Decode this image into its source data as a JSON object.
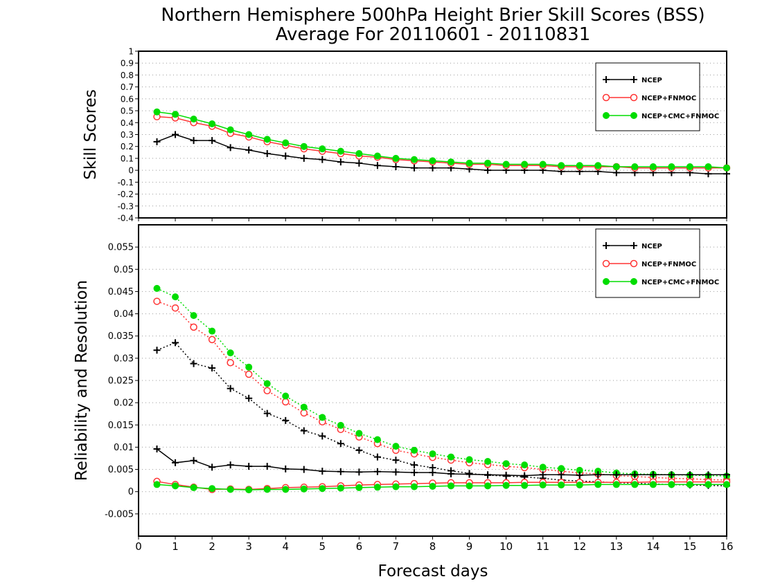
{
  "figure": {
    "title_line1": "Northern Hemisphere 500hPa Height Brier Skill Scores (BSS)",
    "title_line2": "Average For 20110601 - 20110831",
    "xlabel": "Forecast days"
  },
  "chart_data": [
    {
      "type": "line",
      "ylabel": "Skill Scores",
      "xlim": [
        0,
        16
      ],
      "ylim": [
        -0.4,
        1
      ],
      "x_ticks": [
        "0",
        "1",
        "2",
        "3",
        "4",
        "5",
        "6",
        "7",
        "8",
        "9",
        "10",
        "11",
        "12",
        "13",
        "14",
        "15",
        "16"
      ],
      "y_ticks": [
        "-0.4",
        "-0.3",
        "-0.2",
        "-0.1",
        "0",
        "0.1",
        "0.2",
        "0.3",
        "0.4",
        "0.5",
        "0.6",
        "0.7",
        "0.8",
        "0.9",
        "1"
      ],
      "grid": "horizontal dotted",
      "legend_position": "top-right",
      "x": [
        0.5,
        1,
        1.5,
        2,
        2.5,
        3,
        3.5,
        4,
        4.5,
        5,
        5.5,
        6,
        6.5,
        7,
        7.5,
        8,
        8.5,
        9,
        9.5,
        10,
        10.5,
        11,
        11.5,
        12,
        12.5,
        13,
        13.5,
        14,
        14.5,
        15,
        15.5,
        16
      ],
      "series": [
        {
          "name": "NCEP",
          "color": "#000000",
          "marker": "plus",
          "line": "solid",
          "values": [
            0.24,
            0.3,
            0.25,
            0.25,
            0.19,
            0.17,
            0.14,
            0.12,
            0.1,
            0.09,
            0.07,
            0.06,
            0.04,
            0.03,
            0.02,
            0.02,
            0.02,
            0.01,
            0.0,
            0.0,
            0.0,
            0.0,
            -0.01,
            -0.01,
            -0.01,
            -0.02,
            -0.02,
            -0.02,
            -0.02,
            -0.02,
            -0.03,
            -0.03
          ]
        },
        {
          "name": "NCEP+FNMOC",
          "color": "#ff3333",
          "marker": "open-circle",
          "line": "solid",
          "values": [
            0.45,
            0.44,
            0.4,
            0.37,
            0.31,
            0.28,
            0.24,
            0.21,
            0.18,
            0.16,
            0.14,
            0.12,
            0.11,
            0.09,
            0.08,
            0.07,
            0.06,
            0.05,
            0.05,
            0.04,
            0.04,
            0.04,
            0.03,
            0.03,
            0.03,
            0.03,
            0.02,
            0.02,
            0.02,
            0.02,
            0.02,
            0.02
          ]
        },
        {
          "name": "NCEP+CMC+FNMOC",
          "color": "#00dd00",
          "marker": "filled-circle",
          "line": "solid",
          "values": [
            0.49,
            0.47,
            0.43,
            0.39,
            0.34,
            0.3,
            0.26,
            0.23,
            0.2,
            0.18,
            0.16,
            0.14,
            0.12,
            0.1,
            0.09,
            0.08,
            0.07,
            0.06,
            0.06,
            0.05,
            0.05,
            0.05,
            0.04,
            0.04,
            0.04,
            0.03,
            0.03,
            0.03,
            0.03,
            0.03,
            0.03,
            0.02
          ]
        }
      ]
    },
    {
      "type": "line",
      "ylabel": "Reliability and Resolution",
      "xlim": [
        0,
        16
      ],
      "ylim": [
        -0.01,
        0.06
      ],
      "x_ticks": [
        "0",
        "1",
        "2",
        "3",
        "4",
        "5",
        "6",
        "7",
        "8",
        "9",
        "10",
        "11",
        "12",
        "13",
        "14",
        "15",
        "16"
      ],
      "y_ticks": [
        "-0.005",
        "0",
        "0.005",
        "0.01",
        "0.015",
        "0.02",
        "0.025",
        "0.03",
        "0.035",
        "0.04",
        "0.045",
        "0.05",
        "0.055"
      ],
      "grid": "horizontal dotted",
      "legend_position": "top-right",
      "x": [
        0.5,
        1,
        1.5,
        2,
        2.5,
        3,
        3.5,
        4,
        4.5,
        5,
        5.5,
        6,
        6.5,
        7,
        7.5,
        8,
        8.5,
        9,
        9.5,
        10,
        10.5,
        11,
        11.5,
        12,
        12.5,
        13,
        13.5,
        14,
        14.5,
        15,
        15.5,
        16
      ],
      "legend": [
        {
          "name": "NCEP",
          "color": "#000000",
          "marker": "plus"
        },
        {
          "name": "NCEP+FNMOC",
          "color": "#ff3333",
          "marker": "open-circle"
        },
        {
          "name": "NCEP+CMC+FNMOC",
          "color": "#00dd00",
          "marker": "filled-circle"
        }
      ],
      "series": [
        {
          "name": "NCEP",
          "color": "#000000",
          "marker": "plus",
          "line": "dotted",
          "values": [
            0.0318,
            0.0335,
            0.0288,
            0.0278,
            0.0232,
            0.021,
            0.0176,
            0.016,
            0.0137,
            0.0125,
            0.0108,
            0.0093,
            0.0078,
            0.0071,
            0.006,
            0.0054,
            0.0047,
            0.0041,
            0.0037,
            0.0035,
            0.0033,
            0.003,
            0.0026,
            0.0024,
            0.0022,
            0.002,
            0.0019,
            0.0017,
            0.0016,
            0.0015,
            0.0014,
            0.0013
          ]
        },
        {
          "name": "NCEP+FNMOC",
          "color": "#ff3333",
          "marker": "open-circle",
          "line": "dotted",
          "values": [
            0.0428,
            0.0413,
            0.037,
            0.0342,
            0.029,
            0.0264,
            0.0227,
            0.0202,
            0.0177,
            0.0157,
            0.014,
            0.0123,
            0.0108,
            0.0093,
            0.0085,
            0.0077,
            0.0071,
            0.0065,
            0.0061,
            0.0057,
            0.0054,
            0.005,
            0.0046,
            0.0042,
            0.004,
            0.0036,
            0.0034,
            0.0032,
            0.003,
            0.0029,
            0.0027,
            0.0026
          ]
        },
        {
          "name": "NCEP+CMC+FNMOC",
          "color": "#00dd00",
          "marker": "filled-circle",
          "line": "dotted",
          "values": [
            0.0457,
            0.0438,
            0.0396,
            0.0361,
            0.0312,
            0.028,
            0.0243,
            0.0215,
            0.019,
            0.0167,
            0.0149,
            0.0131,
            0.0117,
            0.0102,
            0.0093,
            0.0085,
            0.0078,
            0.0072,
            0.0068,
            0.0063,
            0.006,
            0.0055,
            0.0052,
            0.0048,
            0.0046,
            0.0042,
            0.004,
            0.0039,
            0.0038,
            0.0037,
            0.0036,
            0.0035
          ]
        },
        {
          "name": "NCEP",
          "color": "#000000",
          "marker": "plus",
          "line": "solid",
          "values": [
            0.0096,
            0.0065,
            0.007,
            0.0055,
            0.006,
            0.0057,
            0.0057,
            0.0051,
            0.005,
            0.0046,
            0.0045,
            0.0044,
            0.0045,
            0.0044,
            0.0043,
            0.0043,
            0.004,
            0.0039,
            0.0038,
            0.0037,
            0.0036,
            0.0038,
            0.0038,
            0.0037,
            0.0038,
            0.0038,
            0.0038,
            0.0038,
            0.0038,
            0.0038,
            0.0038,
            0.0038
          ]
        },
        {
          "name": "NCEP+FNMOC",
          "color": "#ff3333",
          "marker": "open-circle",
          "line": "solid",
          "values": [
            0.0023,
            0.0016,
            0.001,
            0.0005,
            0.0006,
            0.0005,
            0.0007,
            0.0009,
            0.001,
            0.0011,
            0.0013,
            0.0015,
            0.0016,
            0.0017,
            0.0018,
            0.0019,
            0.002,
            0.002,
            0.002,
            0.002,
            0.0021,
            0.0021,
            0.0021,
            0.0021,
            0.0021,
            0.0021,
            0.0021,
            0.0022,
            0.0022,
            0.0022,
            0.0022,
            0.0022
          ]
        },
        {
          "name": "NCEP+CMC+FNMOC",
          "color": "#00dd00",
          "marker": "filled-circle",
          "line": "solid",
          "values": [
            0.0016,
            0.0013,
            0.0009,
            0.0007,
            0.0005,
            0.0004,
            0.0005,
            0.0005,
            0.0006,
            0.0007,
            0.0008,
            0.0009,
            0.001,
            0.0011,
            0.0011,
            0.0012,
            0.0013,
            0.0013,
            0.0013,
            0.0014,
            0.0014,
            0.0015,
            0.0015,
            0.0015,
            0.0016,
            0.0016,
            0.0016,
            0.0016,
            0.0016,
            0.0016,
            0.0016,
            0.0016
          ]
        }
      ]
    }
  ]
}
